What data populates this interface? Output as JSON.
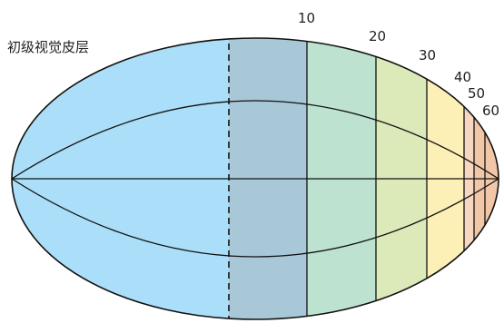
{
  "title": "初级视觉皮层",
  "eccentricity_labels": [
    "10",
    "20",
    "30",
    "40",
    "50",
    "60"
  ],
  "colors": {
    "outline": "#111111",
    "band_0": "#ABDEF8",
    "band_10": "#A8C8D8",
    "band_20": "#BDE2CF",
    "band_30": "#DCE9B9",
    "band_40": "#FDF0B6",
    "band_50": "#F7D7C0",
    "band_60": "#F1C7A8"
  }
}
